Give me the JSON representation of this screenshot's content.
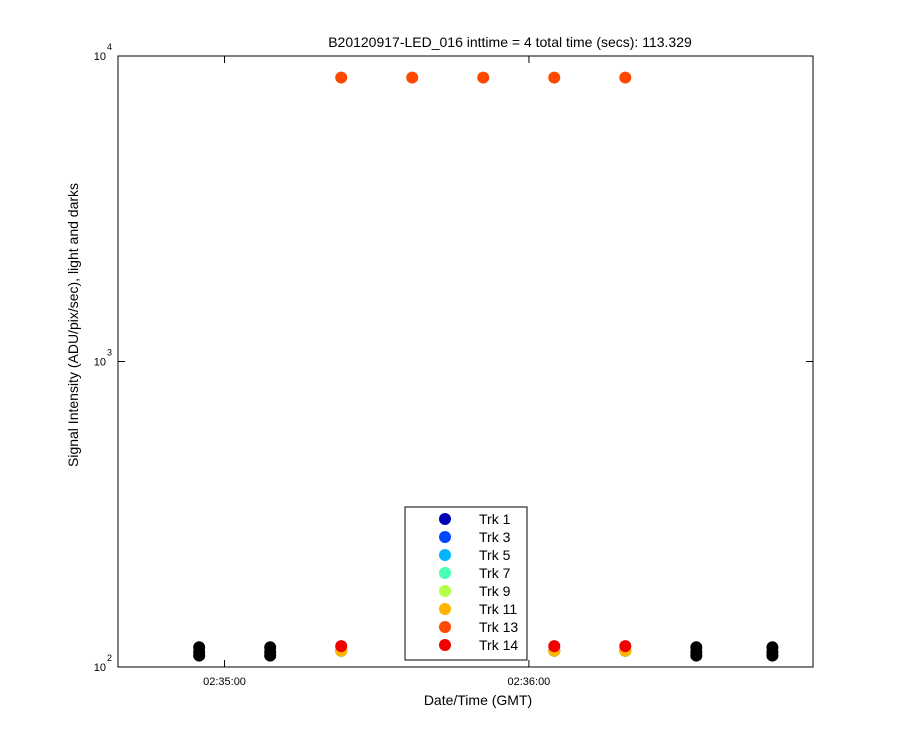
{
  "chart_data": {
    "type": "scatter",
    "title": "B20120917-LED_016 inttime = 4 total time (secs): 113.329",
    "x_label": "Date/Time (GMT)",
    "y_label": "Signal Intensity (ADU/pix/sec), light and darks",
    "xlim": [
      "02:34:39",
      "02:36:56"
    ],
    "xticks": [
      "02:35:00",
      "02:36:00"
    ],
    "ylim": [
      100,
      10000
    ],
    "yscale": "log",
    "yticks": [
      {
        "value": 100,
        "label": "10",
        "exponent": "2"
      },
      {
        "value": 1000,
        "label": "10",
        "exponent": "3"
      },
      {
        "value": 10000,
        "label": "10",
        "exponent": "4"
      }
    ],
    "legend": "bottom",
    "series": [
      {
        "name": "Trk 1",
        "color": "#0000b4",
        "x": [
          "02:35:23",
          "02:36:05",
          "02:36:19"
        ],
        "values": [
          113,
          113,
          113
        ]
      },
      {
        "name": "Trk 3",
        "color": "#0048ff",
        "x": [
          "02:35:23",
          "02:36:05",
          "02:36:19"
        ],
        "values": [
          113,
          113,
          113
        ]
      },
      {
        "name": "Trk 5",
        "color": "#00b4ff",
        "x": [
          "02:35:23",
          "02:36:05",
          "02:36:19"
        ],
        "values": [
          113,
          113,
          113
        ]
      },
      {
        "name": "Trk 7",
        "color": "#48ffb4",
        "x": [
          "02:35:23",
          "02:36:05",
          "02:36:19"
        ],
        "values": [
          113,
          113,
          113
        ]
      },
      {
        "name": "Trk 9",
        "color": "#b4ff48",
        "x": [
          "02:35:23",
          "02:36:05",
          "02:36:19"
        ],
        "values": [
          113,
          113,
          113
        ]
      },
      {
        "name": "Trk 11",
        "color": "#ffb400",
        "x": [
          "02:35:23",
          "02:36:05",
          "02:36:19"
        ],
        "values": [
          113,
          113,
          113
        ]
      },
      {
        "name": "Trk 13",
        "color": "#ff4800",
        "x": [
          "02:35:23",
          "02:35:37",
          "02:35:51",
          "02:36:05",
          "02:36:19"
        ],
        "values": [
          8500,
          8500,
          8500,
          8500,
          8500
        ]
      },
      {
        "name": "Trk 14",
        "color": "#f00000",
        "x": [
          "02:35:23",
          "02:36:05",
          "02:36:19"
        ],
        "values": [
          117,
          117,
          117
        ]
      },
      {
        "color": "#000000",
        "x": [
          "02:34:55",
          "02:34:55",
          "02:34:55",
          "02:35:09",
          "02:35:09",
          "02:35:09",
          "02:36:33",
          "02:36:33",
          "02:36:33",
          "02:36:48",
          "02:36:48",
          "02:36:48"
        ],
        "values": [
          109,
          112,
          116,
          109,
          112,
          116,
          109,
          112,
          116,
          109,
          112,
          116
        ]
      }
    ]
  }
}
